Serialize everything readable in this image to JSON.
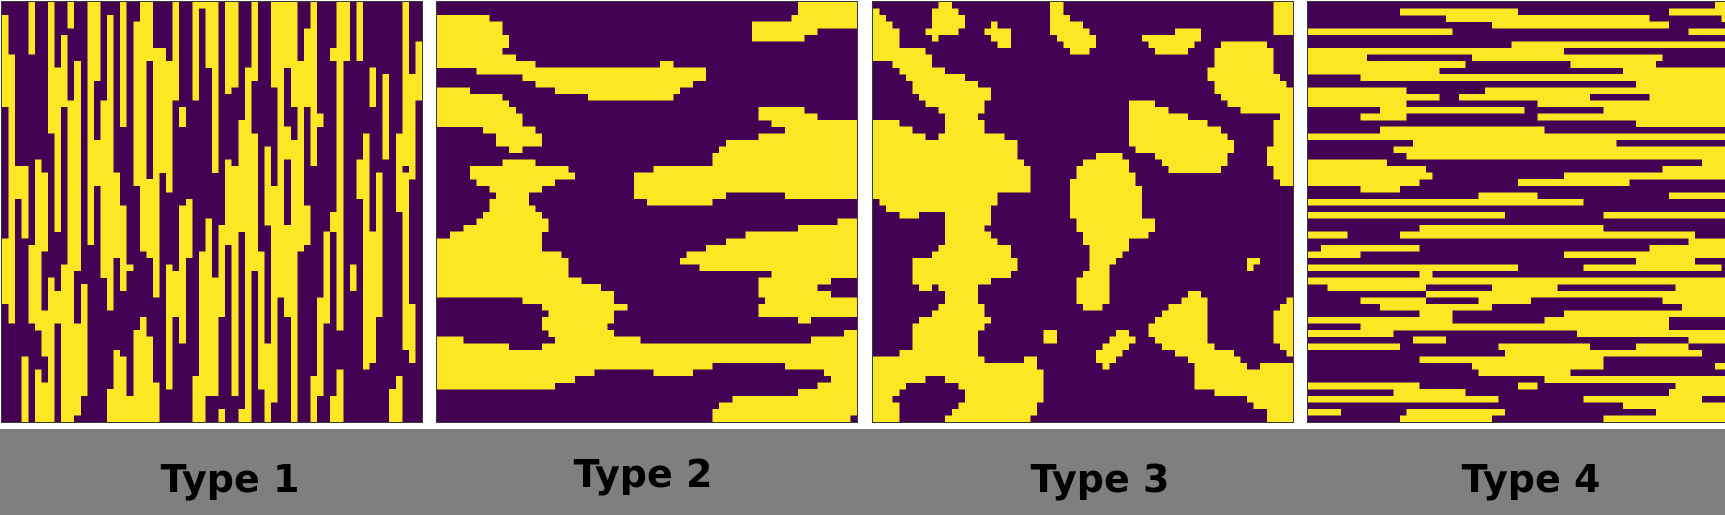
{
  "colors": {
    "background_phase": "#440154",
    "foreground_phase": "#fde725",
    "label_bar": "#7f7f7f"
  },
  "panels": [
    {
      "label": "Type 1",
      "pattern": "vertical-streaks"
    },
    {
      "label": "Type 2",
      "pattern": "horizontal-lenses"
    },
    {
      "label": "Type 3",
      "pattern": "isotropic-blobs"
    },
    {
      "label": "Type 4",
      "pattern": "horizontal-streaks"
    }
  ]
}
